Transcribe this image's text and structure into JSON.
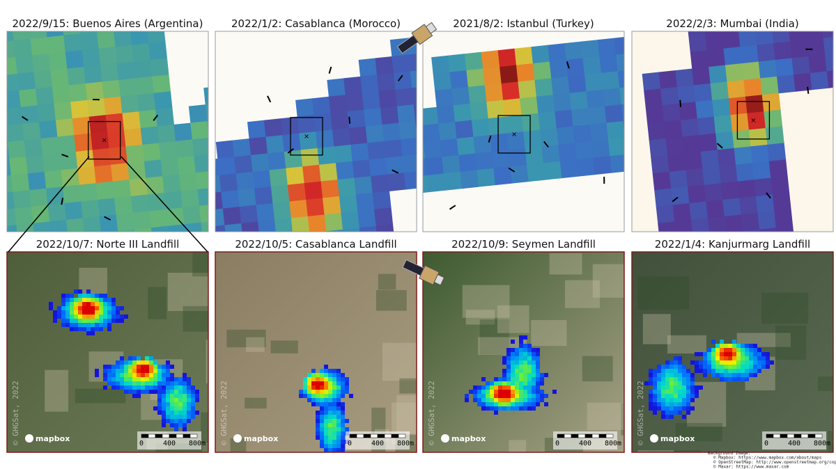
{
  "top_panels": [
    {
      "title": "2022/9/15: Buenos Aires (Argentina)"
    },
    {
      "title": "2022/1/2: Casablanca (Morocco)"
    },
    {
      "title": "2021/8/2: Istanbul (Turkey)"
    },
    {
      "title": "2022/2/3: Mumbai (India)"
    }
  ],
  "bottom_panels": [
    {
      "title": "2022/10/7: Norte III Landfill",
      "watermark": "© GHGSat, 2022",
      "logo": "mapbox",
      "scale": [
        "0",
        "400",
        "800m"
      ]
    },
    {
      "title": "2022/10/5: Casablanca Landfill",
      "watermark": "© GHGSat, 2022",
      "logo": "mapbox",
      "scale": [
        "0",
        "400",
        "800m"
      ]
    },
    {
      "title": "2022/10/9: Seymen Landfill",
      "watermark": "© GHGSat, 2022",
      "logo": "mapbox",
      "scale": [
        "0",
        "400",
        "800m"
      ]
    },
    {
      "title": "2022/1/4: Kanjurmarg Landfill",
      "watermark": "© GHGSat, 2022",
      "logo": "mapbox",
      "scale": [
        "0",
        "400",
        "800m"
      ]
    }
  ],
  "credits": [
    "Background Image:",
    "© Mapbox: https://www.mapbox.com/about/maps",
    "© OpenStreetMap: http://www.openstreetmap.org/copyright",
    "© Maxar: https://www.maxar.com"
  ]
}
